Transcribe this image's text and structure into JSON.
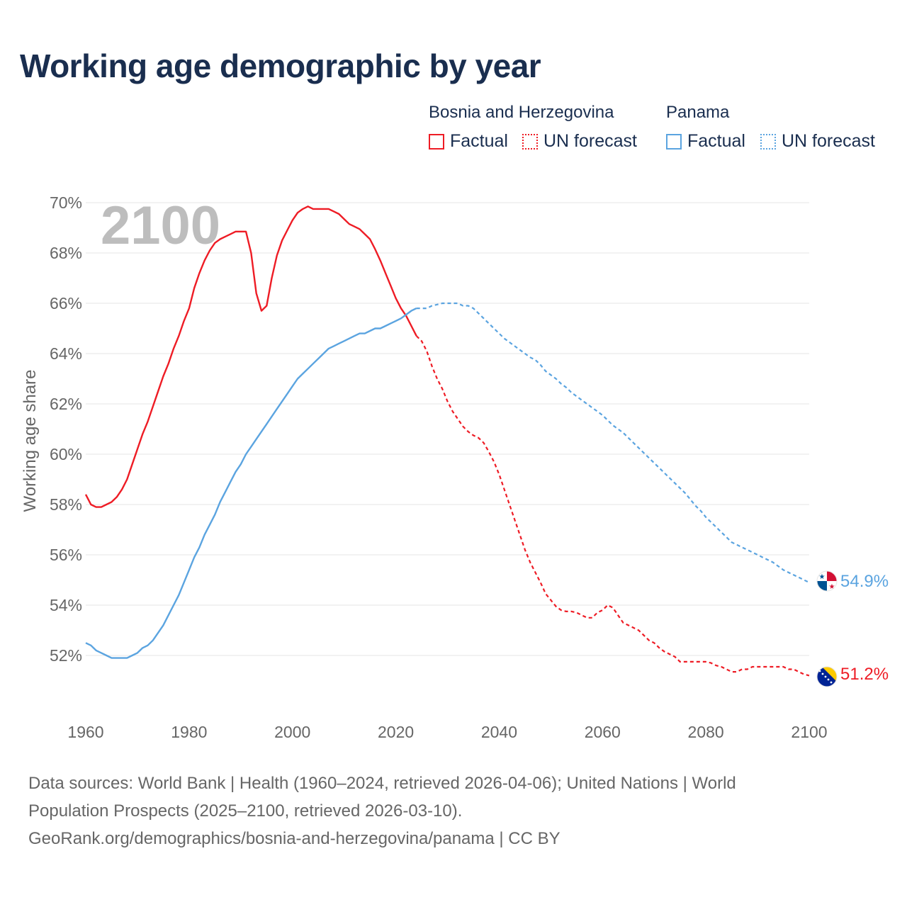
{
  "title": "Working age demographic by year",
  "legend": [
    {
      "country": "Bosnia and Herzegovina",
      "color": "#ee1c25",
      "factual_label": "Factual",
      "forecast_label": "UN forecast"
    },
    {
      "country": "Panama",
      "color": "#5ba4e0",
      "factual_label": "Factual",
      "forecast_label": "UN forecast"
    }
  ],
  "footer": {
    "line1": "Data sources: World Bank | Health (1960–2024, retrieved 2026-04-06); United Nations | World",
    "line2": "Population Prospects (2025–2100, retrieved 2026-03-10).",
    "line3": "GeoRank.org/demographics/bosnia-and-herzegovina/panama | CC BY"
  },
  "chart_data": {
    "type": "line",
    "title": "Working age demographic by year",
    "year_watermark": "2100",
    "xlabel": "",
    "ylabel": "Working age share",
    "xlim": [
      1960,
      2100
    ],
    "ylim": [
      50,
      70.5
    ],
    "x_ticks": [
      1960,
      1980,
      2000,
      2020,
      2040,
      2060,
      2080,
      2100
    ],
    "y_ticks": [
      52,
      54,
      56,
      58,
      60,
      62,
      64,
      66,
      68,
      70
    ],
    "y_tick_suffix": "%",
    "grid": true,
    "legend_position": "top-right",
    "series": [
      {
        "name": "Bosnia and Herzegovina",
        "color": "#ee1c25",
        "end_label": "51.2%",
        "flag": "bosnia",
        "factual_end_year": 2024,
        "points": [
          [
            1960,
            58.4
          ],
          [
            1961,
            58.0
          ],
          [
            1962,
            57.9
          ],
          [
            1963,
            57.9
          ],
          [
            1964,
            58.0
          ],
          [
            1965,
            58.1
          ],
          [
            1966,
            58.3
          ],
          [
            1967,
            58.6
          ],
          [
            1968,
            59.0
          ],
          [
            1969,
            59.6
          ],
          [
            1970,
            60.2
          ],
          [
            1971,
            60.8
          ],
          [
            1972,
            61.3
          ],
          [
            1973,
            61.9
          ],
          [
            1974,
            62.5
          ],
          [
            1975,
            63.1
          ],
          [
            1976,
            63.6
          ],
          [
            1977,
            64.2
          ],
          [
            1978,
            64.7
          ],
          [
            1979,
            65.3
          ],
          [
            1980,
            65.8
          ],
          [
            1981,
            66.6
          ],
          [
            1982,
            67.2
          ],
          [
            1983,
            67.7
          ],
          [
            1984,
            68.1
          ],
          [
            1985,
            68.4
          ],
          [
            1986,
            68.55
          ],
          [
            1987,
            68.65
          ],
          [
            1988,
            68.75
          ],
          [
            1989,
            68.85
          ],
          [
            1990,
            68.85
          ],
          [
            1991,
            68.85
          ],
          [
            1992,
            68.0
          ],
          [
            1993,
            66.4
          ],
          [
            1994,
            65.7
          ],
          [
            1995,
            65.9
          ],
          [
            1996,
            67.0
          ],
          [
            1997,
            67.9
          ],
          [
            1998,
            68.5
          ],
          [
            1999,
            68.9
          ],
          [
            2000,
            69.3
          ],
          [
            2001,
            69.6
          ],
          [
            2002,
            69.75
          ],
          [
            2003,
            69.85
          ],
          [
            2004,
            69.75
          ],
          [
            2005,
            69.75
          ],
          [
            2006,
            69.75
          ],
          [
            2007,
            69.75
          ],
          [
            2008,
            69.65
          ],
          [
            2009,
            69.55
          ],
          [
            2010,
            69.35
          ],
          [
            2011,
            69.15
          ],
          [
            2012,
            69.05
          ],
          [
            2013,
            68.95
          ],
          [
            2014,
            68.75
          ],
          [
            2015,
            68.55
          ],
          [
            2016,
            68.15
          ],
          [
            2017,
            67.7
          ],
          [
            2018,
            67.2
          ],
          [
            2019,
            66.7
          ],
          [
            2020,
            66.2
          ],
          [
            2021,
            65.8
          ],
          [
            2022,
            65.5
          ],
          [
            2023,
            65.1
          ],
          [
            2024,
            64.7
          ],
          [
            2025,
            64.5
          ],
          [
            2026,
            64.1
          ],
          [
            2027,
            63.5
          ],
          [
            2028,
            63.0
          ],
          [
            2029,
            62.6
          ],
          [
            2030,
            62.1
          ],
          [
            2031,
            61.7
          ],
          [
            2032,
            61.4
          ],
          [
            2033,
            61.1
          ],
          [
            2034,
            60.9
          ],
          [
            2035,
            60.75
          ],
          [
            2036,
            60.65
          ],
          [
            2037,
            60.45
          ],
          [
            2038,
            60.1
          ],
          [
            2039,
            59.7
          ],
          [
            2040,
            59.2
          ],
          [
            2041,
            58.6
          ],
          [
            2042,
            58.0
          ],
          [
            2043,
            57.4
          ],
          [
            2044,
            56.8
          ],
          [
            2045,
            56.2
          ],
          [
            2046,
            55.7
          ],
          [
            2047,
            55.3
          ],
          [
            2048,
            54.9
          ],
          [
            2049,
            54.45
          ],
          [
            2050,
            54.2
          ],
          [
            2051,
            53.95
          ],
          [
            2052,
            53.8
          ],
          [
            2053,
            53.75
          ],
          [
            2054,
            53.75
          ],
          [
            2055,
            53.7
          ],
          [
            2056,
            53.6
          ],
          [
            2057,
            53.5
          ],
          [
            2058,
            53.5
          ],
          [
            2059,
            53.7
          ],
          [
            2060,
            53.8
          ],
          [
            2061,
            54.0
          ],
          [
            2062,
            53.9
          ],
          [
            2063,
            53.6
          ],
          [
            2064,
            53.3
          ],
          [
            2065,
            53.2
          ],
          [
            2066,
            53.1
          ],
          [
            2067,
            53.0
          ],
          [
            2068,
            52.8
          ],
          [
            2069,
            52.6
          ],
          [
            2070,
            52.5
          ],
          [
            2071,
            52.3
          ],
          [
            2072,
            52.15
          ],
          [
            2073,
            52.05
          ],
          [
            2074,
            51.95
          ],
          [
            2075,
            51.75
          ],
          [
            2076,
            51.75
          ],
          [
            2077,
            51.75
          ],
          [
            2078,
            51.75
          ],
          [
            2079,
            51.75
          ],
          [
            2080,
            51.75
          ],
          [
            2081,
            51.7
          ],
          [
            2082,
            51.6
          ],
          [
            2083,
            51.55
          ],
          [
            2084,
            51.45
          ],
          [
            2085,
            51.35
          ],
          [
            2086,
            51.35
          ],
          [
            2087,
            51.45
          ],
          [
            2088,
            51.45
          ],
          [
            2089,
            51.55
          ],
          [
            2090,
            51.55
          ],
          [
            2091,
            51.55
          ],
          [
            2092,
            51.55
          ],
          [
            2093,
            51.55
          ],
          [
            2094,
            51.55
          ],
          [
            2095,
            51.55
          ],
          [
            2096,
            51.45
          ],
          [
            2097,
            51.45
          ],
          [
            2098,
            51.35
          ],
          [
            2099,
            51.25
          ],
          [
            2100,
            51.2
          ]
        ]
      },
      {
        "name": "Panama",
        "color": "#5ba4e0",
        "end_label": "54.9%",
        "flag": "panama",
        "factual_end_year": 2024,
        "points": [
          [
            1960,
            52.5
          ],
          [
            1961,
            52.4
          ],
          [
            1962,
            52.2
          ],
          [
            1963,
            52.1
          ],
          [
            1964,
            52.0
          ],
          [
            1965,
            51.9
          ],
          [
            1966,
            51.9
          ],
          [
            1967,
            51.9
          ],
          [
            1968,
            51.9
          ],
          [
            1969,
            52.0
          ],
          [
            1970,
            52.1
          ],
          [
            1971,
            52.3
          ],
          [
            1972,
            52.4
          ],
          [
            1973,
            52.6
          ],
          [
            1974,
            52.9
          ],
          [
            1975,
            53.2
          ],
          [
            1976,
            53.6
          ],
          [
            1977,
            54.0
          ],
          [
            1978,
            54.4
          ],
          [
            1979,
            54.9
          ],
          [
            1980,
            55.4
          ],
          [
            1981,
            55.9
          ],
          [
            1982,
            56.3
          ],
          [
            1983,
            56.8
          ],
          [
            1984,
            57.2
          ],
          [
            1985,
            57.6
          ],
          [
            1986,
            58.1
          ],
          [
            1987,
            58.5
          ],
          [
            1988,
            58.9
          ],
          [
            1989,
            59.3
          ],
          [
            1990,
            59.6
          ],
          [
            1991,
            60.0
          ],
          [
            1992,
            60.3
          ],
          [
            1993,
            60.6
          ],
          [
            1994,
            60.9
          ],
          [
            1995,
            61.2
          ],
          [
            1996,
            61.5
          ],
          [
            1997,
            61.8
          ],
          [
            1998,
            62.1
          ],
          [
            1999,
            62.4
          ],
          [
            2000,
            62.7
          ],
          [
            2001,
            63.0
          ],
          [
            2002,
            63.2
          ],
          [
            2003,
            63.4
          ],
          [
            2004,
            63.6
          ],
          [
            2005,
            63.8
          ],
          [
            2006,
            64.0
          ],
          [
            2007,
            64.2
          ],
          [
            2008,
            64.3
          ],
          [
            2009,
            64.4
          ],
          [
            2010,
            64.5
          ],
          [
            2011,
            64.6
          ],
          [
            2012,
            64.7
          ],
          [
            2013,
            64.8
          ],
          [
            2014,
            64.8
          ],
          [
            2015,
            64.9
          ],
          [
            2016,
            65.0
          ],
          [
            2017,
            65.0
          ],
          [
            2018,
            65.1
          ],
          [
            2019,
            65.2
          ],
          [
            2020,
            65.3
          ],
          [
            2021,
            65.4
          ],
          [
            2022,
            65.55
          ],
          [
            2023,
            65.7
          ],
          [
            2024,
            65.8
          ],
          [
            2025,
            65.8
          ],
          [
            2026,
            65.8
          ],
          [
            2027,
            65.9
          ],
          [
            2028,
            65.95
          ],
          [
            2029,
            66.0
          ],
          [
            2030,
            66.0
          ],
          [
            2031,
            66.0
          ],
          [
            2032,
            66.0
          ],
          [
            2033,
            65.9
          ],
          [
            2034,
            65.9
          ],
          [
            2035,
            65.8
          ],
          [
            2036,
            65.6
          ],
          [
            2037,
            65.4
          ],
          [
            2038,
            65.2
          ],
          [
            2039,
            65.0
          ],
          [
            2040,
            64.8
          ],
          [
            2041,
            64.6
          ],
          [
            2042,
            64.45
          ],
          [
            2043,
            64.3
          ],
          [
            2044,
            64.15
          ],
          [
            2045,
            64.0
          ],
          [
            2046,
            63.85
          ],
          [
            2047,
            63.75
          ],
          [
            2048,
            63.55
          ],
          [
            2049,
            63.3
          ],
          [
            2050,
            63.15
          ],
          [
            2051,
            63.0
          ],
          [
            2052,
            62.8
          ],
          [
            2053,
            62.65
          ],
          [
            2054,
            62.45
          ],
          [
            2055,
            62.3
          ],
          [
            2056,
            62.15
          ],
          [
            2057,
            62.0
          ],
          [
            2058,
            61.85
          ],
          [
            2059,
            61.7
          ],
          [
            2060,
            61.55
          ],
          [
            2061,
            61.35
          ],
          [
            2062,
            61.15
          ],
          [
            2063,
            61.0
          ],
          [
            2064,
            60.85
          ],
          [
            2065,
            60.65
          ],
          [
            2066,
            60.45
          ],
          [
            2067,
            60.25
          ],
          [
            2068,
            60.05
          ],
          [
            2069,
            59.85
          ],
          [
            2070,
            59.65
          ],
          [
            2071,
            59.45
          ],
          [
            2072,
            59.25
          ],
          [
            2073,
            59.05
          ],
          [
            2074,
            58.85
          ],
          [
            2075,
            58.65
          ],
          [
            2076,
            58.45
          ],
          [
            2077,
            58.2
          ],
          [
            2078,
            57.95
          ],
          [
            2079,
            57.75
          ],
          [
            2080,
            57.5
          ],
          [
            2081,
            57.3
          ],
          [
            2082,
            57.1
          ],
          [
            2083,
            56.9
          ],
          [
            2084,
            56.7
          ],
          [
            2085,
            56.5
          ],
          [
            2086,
            56.4
          ],
          [
            2087,
            56.3
          ],
          [
            2088,
            56.2
          ],
          [
            2089,
            56.1
          ],
          [
            2090,
            56.0
          ],
          [
            2091,
            55.9
          ],
          [
            2092,
            55.8
          ],
          [
            2093,
            55.7
          ],
          [
            2094,
            55.55
          ],
          [
            2095,
            55.4
          ],
          [
            2096,
            55.3
          ],
          [
            2097,
            55.2
          ],
          [
            2098,
            55.1
          ],
          [
            2099,
            55.0
          ],
          [
            2100,
            54.9
          ]
        ]
      }
    ]
  }
}
